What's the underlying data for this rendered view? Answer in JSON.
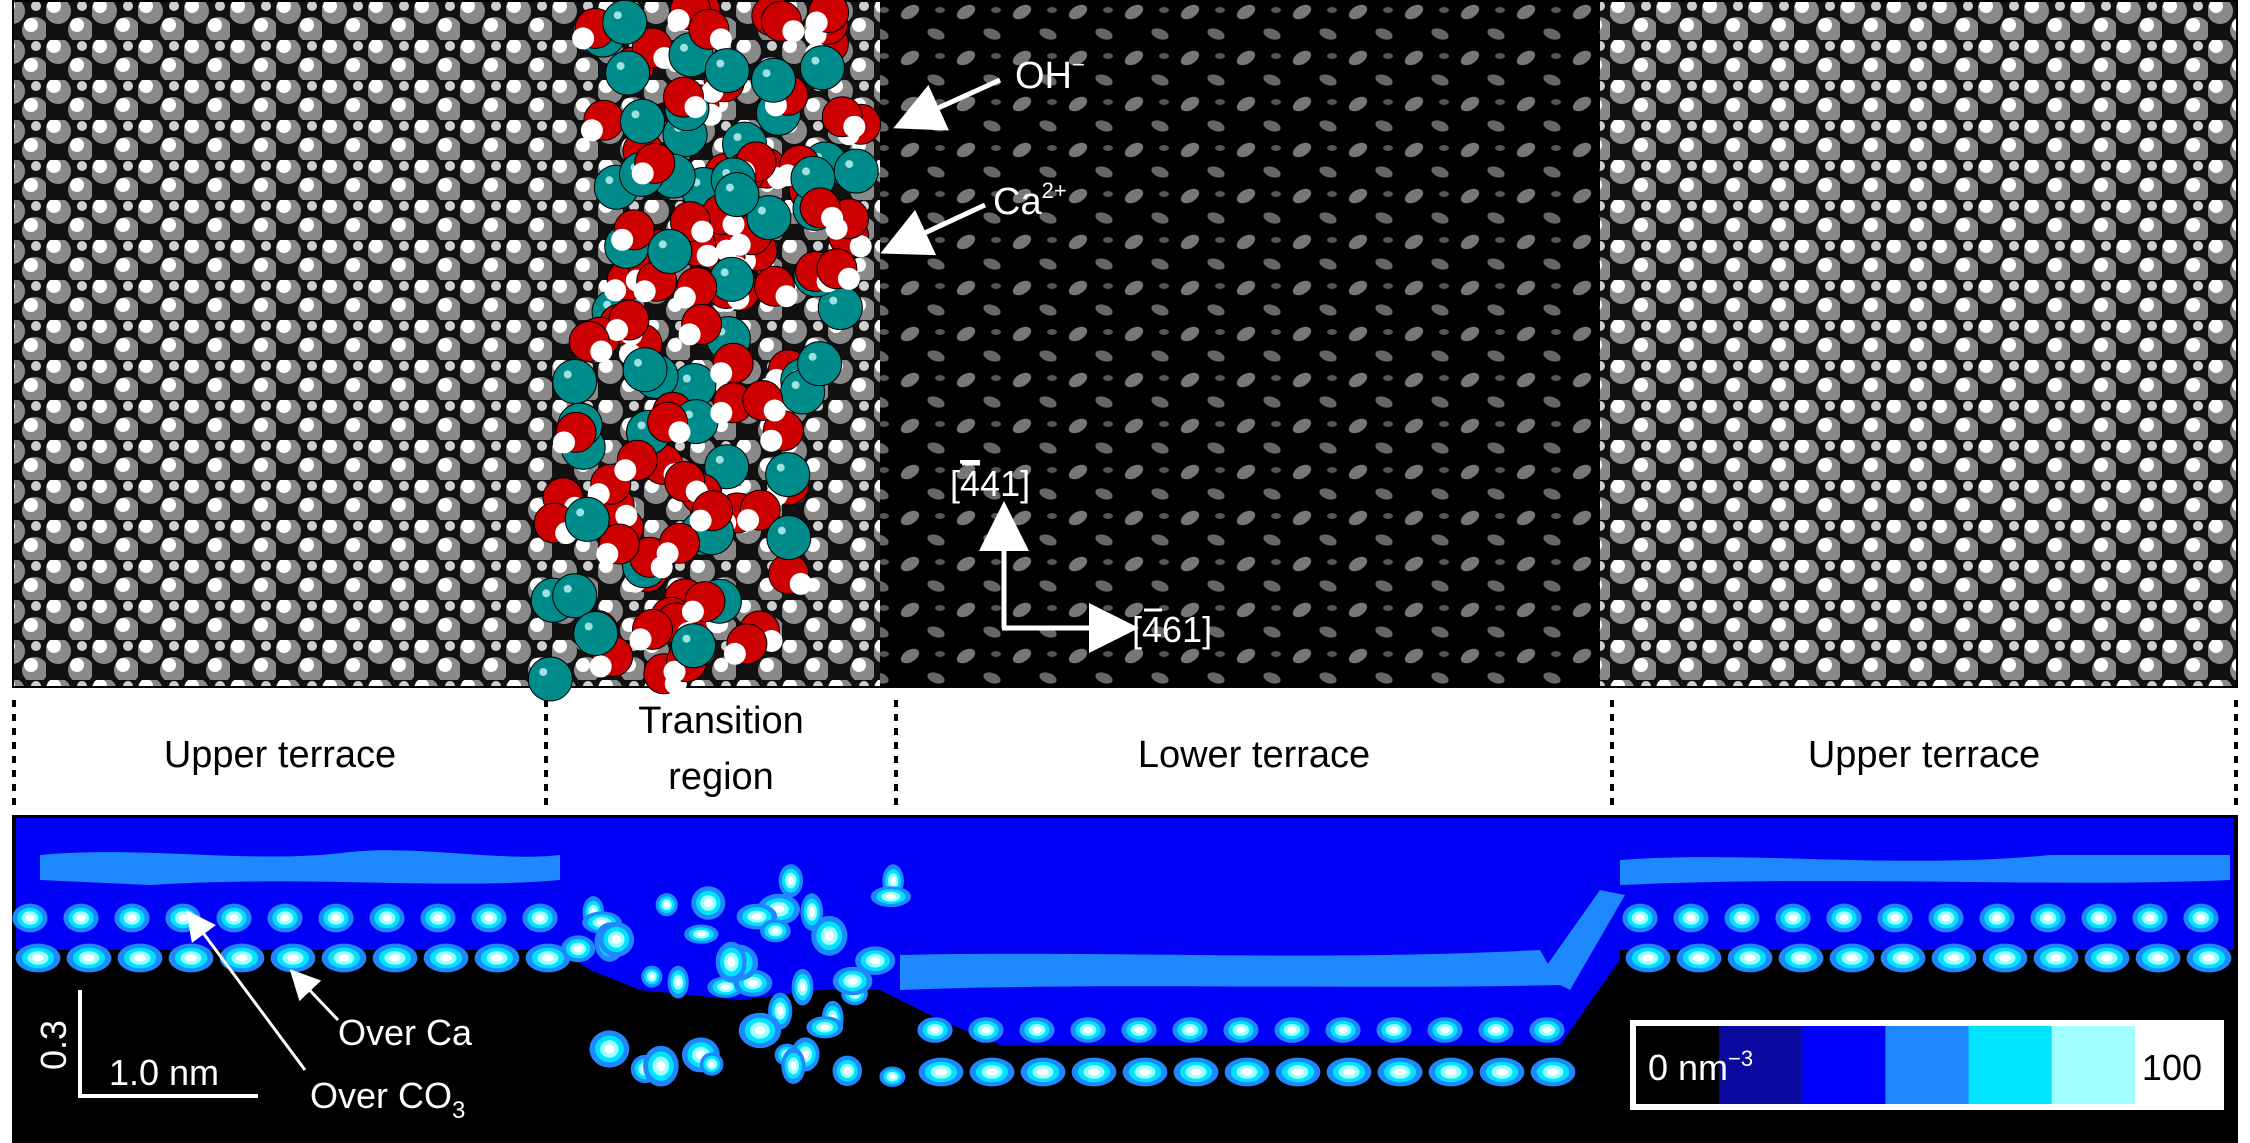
{
  "annotations": {
    "oh": {
      "base": "OH",
      "sup": "−"
    },
    "ca": {
      "base": "Ca",
      "sup": "2+"
    },
    "axis_up": {
      "bracket": "[",
      "bar_digit": "4",
      "rest": "41]"
    },
    "axis_right": {
      "bracket": "[",
      "bar_digit": "4",
      "rest": "61]"
    }
  },
  "regions": {
    "upper_left": "Upper terrace",
    "transition_line1": "Transition",
    "transition_line2": "region",
    "lower": "Lower terrace",
    "upper_right": "Upper terrace"
  },
  "density_map": {
    "labels": {
      "over_ca": "Over Ca",
      "over_co3_base": "Over CO",
      "over_co3_sub": "3"
    },
    "scale_bar": {
      "horizontal": "1.0 nm",
      "vertical": "0.3"
    },
    "colorbar": {
      "min_label": "0 nm",
      "min_unit_sup": "−3",
      "max_label": "100",
      "colors": [
        "#000000",
        "#0a0aa0",
        "#0000ff",
        "#1e88ff",
        "#00e5ff",
        "#a0ffff",
        "#ffffff"
      ]
    }
  },
  "colors": {
    "upper_terrace_atoms": "#8c8c8c",
    "lower_terrace_bg": "#000000",
    "oxygen": "#cc0000",
    "calcium": "#008b8b",
    "hydrogen": "#ffffff",
    "density_bg": "#0000f5"
  }
}
